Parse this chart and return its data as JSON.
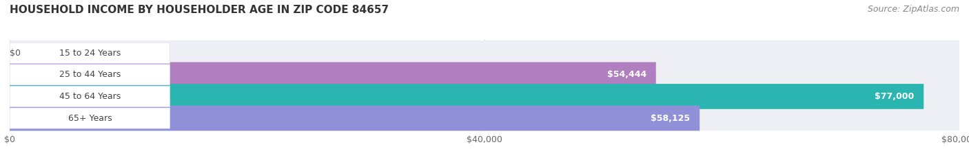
{
  "title": "HOUSEHOLD INCOME BY HOUSEHOLDER AGE IN ZIP CODE 84657",
  "source": "Source: ZipAtlas.com",
  "categories": [
    "15 to 24 Years",
    "25 to 44 Years",
    "45 to 64 Years",
    "65+ Years"
  ],
  "values": [
    0,
    54444,
    77000,
    58125
  ],
  "labels": [
    "$0",
    "$54,444",
    "$77,000",
    "$58,125"
  ],
  "bar_colors": [
    "#a8b8d8",
    "#b07fc0",
    "#2ab5b0",
    "#9090d8"
  ],
  "bar_bg_color": "#eeeef5",
  "xlim": [
    0,
    80000
  ],
  "xticks": [
    0,
    40000,
    80000
  ],
  "xticklabels": [
    "$0",
    "$40,000",
    "$80,000"
  ],
  "title_fontsize": 11,
  "source_fontsize": 9,
  "label_fontsize": 9,
  "cat_fontsize": 9,
  "tick_fontsize": 9,
  "background_color": "#ffffff",
  "bar_height": 0.58,
  "label_pad_color": "#ffffff"
}
